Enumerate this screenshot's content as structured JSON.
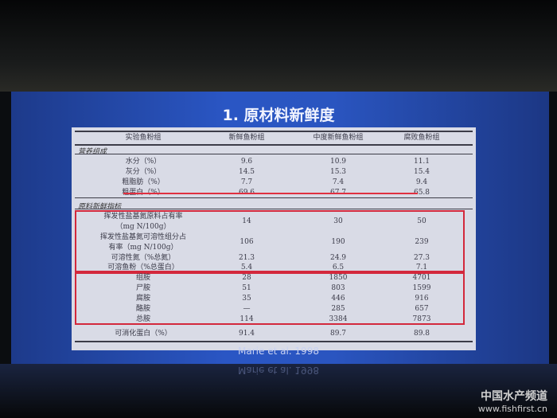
{
  "slide": {
    "title": "1. 原材料新鲜度",
    "citation": "Marie et al. 1998",
    "table": {
      "headers": [
        "实验鱼粉组",
        "新鲜鱼粉组",
        "中度新鲜鱼粉组",
        "腐败鱼粉组"
      ],
      "section1": "营养组成",
      "rows1": [
        [
          "水分（%）",
          "9.6",
          "10.9",
          "11.1"
        ],
        [
          "灰分（%）",
          "14.5",
          "15.3",
          "15.4"
        ],
        [
          "粗脂肪（%）",
          "7.7",
          "7.4",
          "9.4"
        ],
        [
          "粗蛋白（%）",
          "69.6",
          "67.7",
          "65.8"
        ]
      ],
      "section2": "原料新鲜指标",
      "rows2": [
        [
          "挥发性盐基氮原料占有率",
          "（mg N/100g）",
          "14",
          "30",
          "50"
        ],
        [
          "挥发性盐基氮可溶性组分占",
          "有率（mg N/100g）",
          "106",
          "190",
          "239"
        ]
      ],
      "rows3": [
        [
          "可溶性氮（%总氮）",
          "21.3",
          "24.9",
          "27.3"
        ],
        [
          "可溶鱼粉（%总蛋白）",
          "5.4",
          "6.5",
          "7.1"
        ]
      ],
      "rows4": [
        [
          "组胺",
          "28",
          "1850",
          "4701"
        ],
        [
          "尸胺",
          "51",
          "803",
          "1599"
        ],
        [
          "腐胺",
          "35",
          "446",
          "916"
        ],
        [
          "酪胺",
          "—",
          "285",
          "657"
        ],
        [
          "总胺",
          "114",
          "3384",
          "7873"
        ]
      ],
      "rows5": [
        [
          "可消化蛋白（%）",
          "91.4",
          "89.7",
          "89.8"
        ]
      ]
    }
  },
  "watermark": {
    "line1": "中国水产频道",
    "line2": "www.fishfirst.cn"
  },
  "colors": {
    "screen": "#2a55c0",
    "highlight": "#d3283c"
  }
}
